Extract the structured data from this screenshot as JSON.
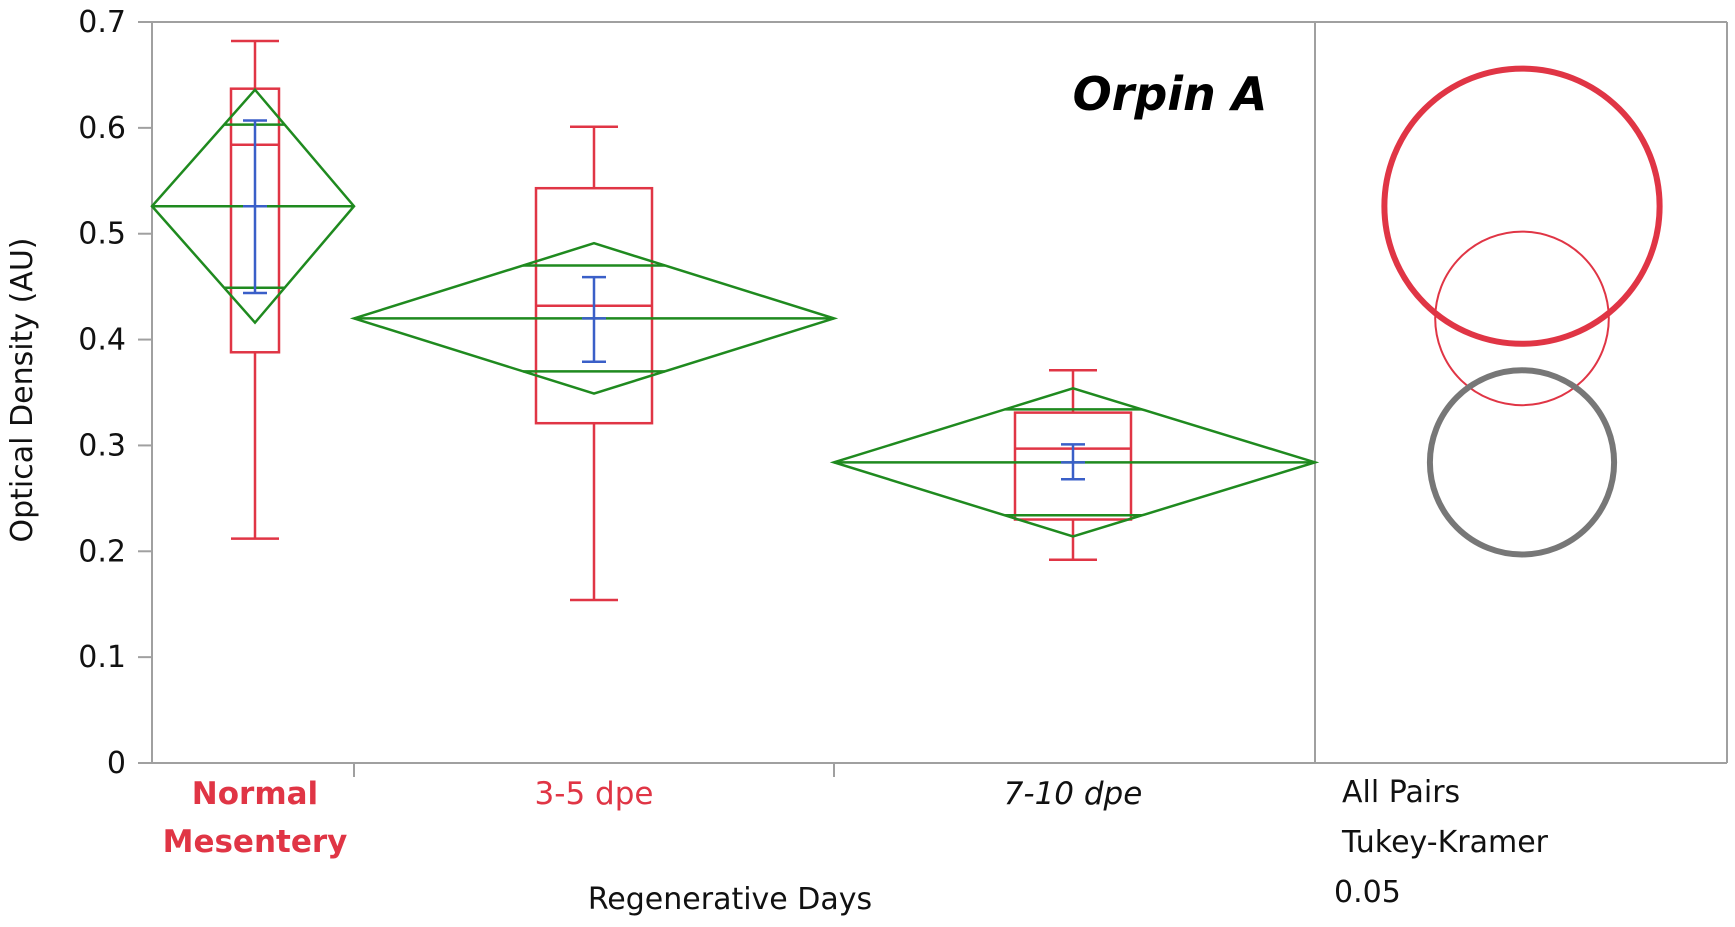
{
  "chart_data": {
    "type": "box",
    "title": "Orpin A",
    "xlabel": "Regenerative Days",
    "ylabel": "Optical Density (AU)",
    "ylim": [
      0,
      0.7
    ],
    "y_ticks": [
      "0",
      "0.1",
      "0.2",
      "0.3",
      "0.4",
      "0.5",
      "0.6",
      "0.7"
    ],
    "y_tick_values": [
      0,
      0.1,
      0.2,
      0.3,
      0.4,
      0.5,
      0.6,
      0.7
    ],
    "grid": false,
    "categories": [
      "Normal Mesentery",
      "3-5 dpe",
      "7-10 dpe"
    ],
    "category_lines": [
      [
        "Normal",
        "Mesentery"
      ],
      [
        "3-5 dpe"
      ],
      [
        "7-10 dpe"
      ]
    ],
    "category_styles": [
      "bold-red",
      "red",
      "italic-black"
    ],
    "groups": [
      {
        "name": "Normal Mesentery",
        "box": {
          "whisker_low": 0.212,
          "q1": 0.388,
          "median": 0.584,
          "q3": 0.637,
          "whisker_high": 0.682
        },
        "means_diamond": {
          "mean": 0.526,
          "lower": 0.416,
          "upper": 0.636,
          "overlap_low": 0.449,
          "overlap_high": 0.603
        },
        "std_error": {
          "mean": 0.526,
          "low": 0.444,
          "high": 0.607
        }
      },
      {
        "name": "3-5 dpe",
        "box": {
          "whisker_low": 0.154,
          "q1": 0.321,
          "median": 0.432,
          "q3": 0.543,
          "whisker_high": 0.601
        },
        "means_diamond": {
          "mean": 0.42,
          "lower": 0.349,
          "upper": 0.491,
          "overlap_low": 0.37,
          "overlap_high": 0.47
        },
        "std_error": {
          "mean": 0.42,
          "low": 0.379,
          "high": 0.459
        }
      },
      {
        "name": "7-10 dpe",
        "box": {
          "whisker_low": 0.192,
          "q1": 0.23,
          "median": 0.297,
          "q3": 0.331,
          "whisker_high": 0.371
        },
        "means_diamond": {
          "mean": 0.284,
          "lower": 0.214,
          "upper": 0.354,
          "overlap_low": 0.234,
          "overlap_high": 0.334
        },
        "std_error": {
          "mean": 0.284,
          "low": 0.268,
          "high": 0.301
        }
      }
    ],
    "comparison_circles": {
      "label_lines": [
        "All Pairs",
        "Tukey-Kramer",
        "0.05"
      ],
      "circles": [
        {
          "group": "Normal Mesentery",
          "center": 0.526,
          "radius": 0.13,
          "color": "#e03545",
          "style": "thick"
        },
        {
          "group": "3-5 dpe",
          "center": 0.42,
          "radius": 0.082,
          "color": "#e03545",
          "style": "thin"
        },
        {
          "group": "7-10 dpe",
          "center": 0.284,
          "radius": 0.087,
          "color": "#777777",
          "style": "thick"
        }
      ]
    },
    "colors": {
      "box": "#e03545",
      "diamond": "#1f8a1f",
      "error_bar": "#3a5fc8",
      "axis": "#a0a0a0",
      "label_red": "#e03545",
      "circle_gray": "#777777"
    }
  }
}
